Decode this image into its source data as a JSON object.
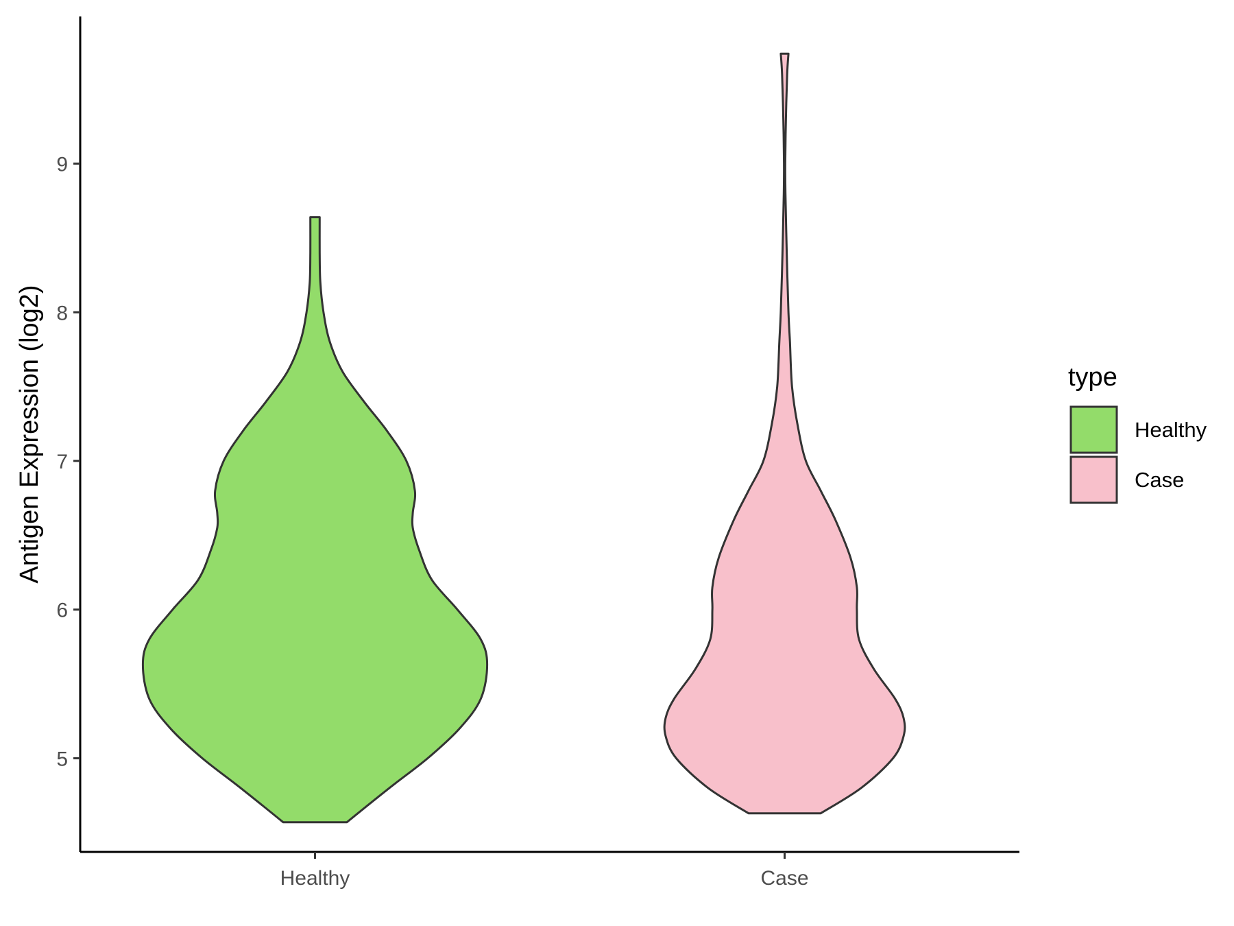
{
  "chart_data": {
    "type": "violin",
    "ylabel": "Antigen Expression (log2)",
    "xlabel": "",
    "categories": [
      "Healthy",
      "Case"
    ],
    "y_ticks": [
      5,
      6,
      7,
      8,
      9
    ],
    "ylim": [
      4.37,
      9.99
    ],
    "grid": false,
    "legend": {
      "title": "type",
      "position": "right",
      "entries": [
        {
          "label": "Healthy",
          "color": "#93dc6a"
        },
        {
          "label": "Case",
          "color": "#f8c0cb"
        }
      ]
    },
    "series": [
      {
        "category": "Healthy",
        "color": "#93dc6a",
        "min": 4.57,
        "max": 8.64,
        "density": [
          [
            4.57,
            0.15
          ],
          [
            4.8,
            0.35
          ],
          [
            5.0,
            0.53
          ],
          [
            5.2,
            0.68
          ],
          [
            5.4,
            0.78
          ],
          [
            5.63,
            0.81
          ],
          [
            5.8,
            0.78
          ],
          [
            6.0,
            0.67
          ],
          [
            6.2,
            0.55
          ],
          [
            6.4,
            0.49
          ],
          [
            6.55,
            0.46
          ],
          [
            6.65,
            0.46
          ],
          [
            6.8,
            0.47
          ],
          [
            7.0,
            0.43
          ],
          [
            7.2,
            0.34
          ],
          [
            7.4,
            0.23
          ],
          [
            7.6,
            0.13
          ],
          [
            7.8,
            0.07
          ],
          [
            8.0,
            0.04
          ],
          [
            8.2,
            0.025
          ],
          [
            8.4,
            0.022
          ],
          [
            8.64,
            0.022
          ]
        ]
      },
      {
        "category": "Case",
        "color": "#f8c0cb",
        "min": 4.63,
        "max": 9.74,
        "density": [
          [
            4.63,
            0.17
          ],
          [
            4.8,
            0.36
          ],
          [
            5.0,
            0.51
          ],
          [
            5.15,
            0.56
          ],
          [
            5.27,
            0.56
          ],
          [
            5.4,
            0.52
          ],
          [
            5.6,
            0.42
          ],
          [
            5.8,
            0.35
          ],
          [
            6.0,
            0.34
          ],
          [
            6.15,
            0.34
          ],
          [
            6.35,
            0.31
          ],
          [
            6.6,
            0.24
          ],
          [
            6.8,
            0.17
          ],
          [
            7.0,
            0.1
          ],
          [
            7.25,
            0.06
          ],
          [
            7.5,
            0.035
          ],
          [
            7.8,
            0.025
          ],
          [
            8.0,
            0.018
          ],
          [
            8.4,
            0.01
          ],
          [
            8.8,
            0.004
          ],
          [
            9.0,
            0.003
          ],
          [
            9.3,
            0.006
          ],
          [
            9.6,
            0.012
          ],
          [
            9.74,
            0.018
          ]
        ]
      }
    ]
  }
}
